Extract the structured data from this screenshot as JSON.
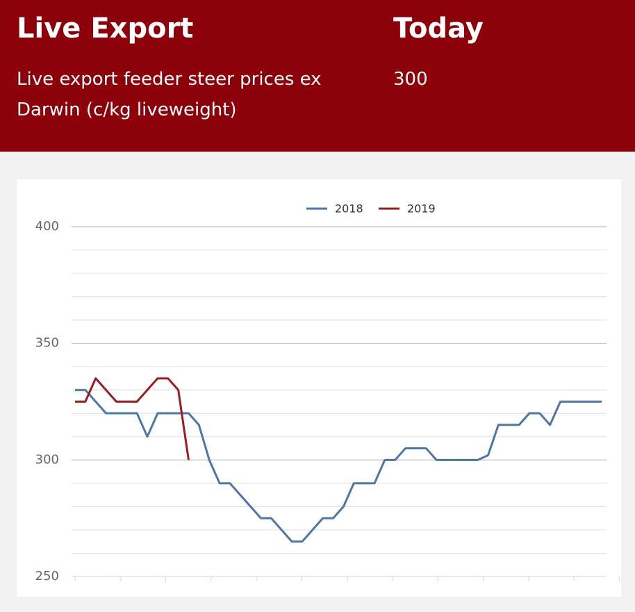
{
  "header": {
    "title": "Live Export",
    "description": "Live export feeder steer prices ex Darwin (c/kg liveweight)",
    "today_label": "Today",
    "today_value": 300
  },
  "chart_data": {
    "type": "line",
    "categories": [
      null,
      null,
      null,
      null,
      null,
      null,
      null,
      null,
      null,
      null,
      null,
      null,
      null,
      null,
      null,
      null,
      null,
      null,
      null,
      null,
      null,
      null,
      null,
      null,
      null,
      null,
      null,
      null,
      null,
      null,
      null,
      null,
      null,
      null,
      null,
      null,
      null,
      null,
      null,
      null,
      null,
      null,
      null,
      null,
      null,
      null,
      null,
      null,
      null,
      null,
      null,
      null
    ],
    "series": [
      {
        "name": "2018",
        "color": "#4a76a8",
        "values": [
          330,
          330,
          325,
          320,
          320,
          320,
          320,
          310,
          320,
          320,
          320,
          320,
          315,
          300,
          290,
          290,
          285,
          280,
          275,
          275,
          270,
          265,
          265,
          270,
          275,
          275,
          280,
          290,
          290,
          290,
          300,
          300,
          305,
          305,
          305,
          300,
          300,
          300,
          300,
          300,
          302,
          315,
          315,
          315,
          320,
          320,
          315,
          325,
          325,
          325,
          325,
          325
        ]
      },
      {
        "name": "2019",
        "color": "#9b1b1f",
        "values": [
          325,
          325,
          335,
          330,
          325,
          325,
          325,
          330,
          335,
          335,
          330,
          300,
          null,
          null,
          null,
          null,
          null,
          null,
          null,
          null,
          null,
          null,
          null,
          null,
          null,
          null,
          null,
          null,
          null,
          null,
          null,
          null,
          null,
          null,
          null,
          null,
          null,
          null,
          null,
          null,
          null,
          null,
          null,
          null,
          null,
          null,
          null,
          null,
          null,
          null,
          null,
          null
        ]
      }
    ],
    "ylim": [
      250,
      400
    ],
    "yticks": [
      250,
      300,
      350,
      400
    ],
    "minor_yticks": [
      260,
      270,
      280,
      290,
      310,
      320,
      330,
      340,
      360,
      370,
      380,
      390
    ],
    "grid": true,
    "legend": "top"
  }
}
